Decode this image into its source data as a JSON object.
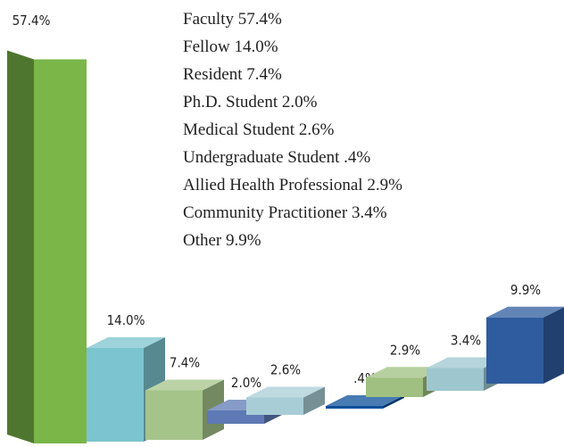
{
  "chart_data": {
    "type": "bar3d",
    "categories": [
      "Faculty",
      "Fellow",
      "Resident",
      "Ph.D. Student",
      "Medical Student",
      "Undergraduate Student",
      "Allied Health Professional",
      "Community Practitioner",
      "Other"
    ],
    "values": [
      57.4,
      14.0,
      7.4,
      2.0,
      2.6,
      0.4,
      2.9,
      3.4,
      9.9
    ],
    "value_labels": [
      "57.4%",
      "14.0%",
      "7.4%",
      "2.0%",
      "2.6%",
      ".4%",
      "2.9%",
      "3.4%",
      "9.9%"
    ],
    "colors": [
      "#7ab648",
      "#7cc4cf",
      "#a5c48a",
      "#5e79b5",
      "#a9cdd6",
      "#0a4f98",
      "#9fc080",
      "#9ec6cf",
      "#2f5c9e"
    ]
  }
}
